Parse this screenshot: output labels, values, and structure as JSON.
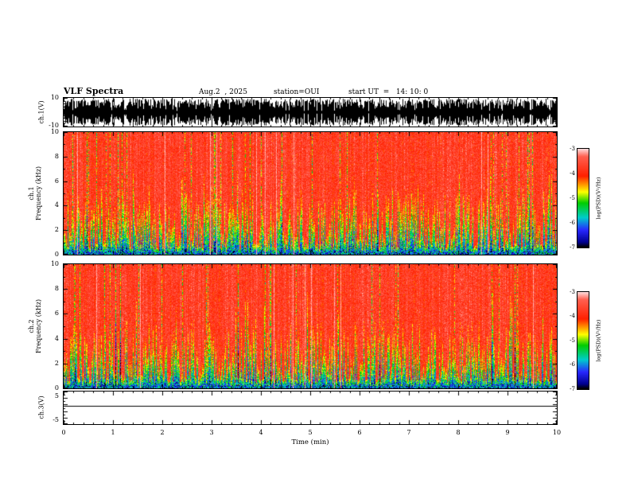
{
  "header": {
    "title": "VLF Spectra",
    "date": "Aug.2  , 2025",
    "station": "station=OUI",
    "start_ut": "start UT  =   14: 10: 0"
  },
  "xaxis": {
    "label": "Time  (min)",
    "ticks": [
      "0",
      "1",
      "2",
      "3",
      "4",
      "5",
      "6",
      "7",
      "8",
      "9",
      "10"
    ]
  },
  "panels": {
    "wave": {
      "ylabel": "ch.1(V)",
      "yticks": [
        "10",
        "-10"
      ]
    },
    "spec1": {
      "ylabel_ch": "ch.1",
      "ylabel_freq": "Frequency  (kHz)",
      "yticks": [
        "10",
        "8",
        "6",
        "4",
        "2",
        "0"
      ]
    },
    "spec2": {
      "ylabel_ch": "ch.2",
      "ylabel_freq": "Frequency  (kHz)",
      "yticks": [
        "10",
        "8",
        "6",
        "4",
        "2",
        "0"
      ]
    },
    "ch3": {
      "ylabel": "ch.3(V)",
      "yticks": [
        "5",
        "-5"
      ]
    }
  },
  "colorbar": {
    "label": "log(PSD)(V²/Hz)",
    "ticks": [
      "-3",
      "-4",
      "-5",
      "-6",
      "-7"
    ]
  },
  "colors": {
    "colormap_stops": [
      {
        "value": -3.0,
        "hex": "#ffd8d8"
      },
      {
        "value": -3.3,
        "hex": "#ff6050"
      },
      {
        "value": -4.1,
        "hex": "#ff2000"
      },
      {
        "value": -4.45,
        "hex": "#ff9800"
      },
      {
        "value": -4.75,
        "hex": "#ffff00"
      },
      {
        "value": -5.2,
        "hex": "#00cc00"
      },
      {
        "value": -5.8,
        "hex": "#00cccc"
      },
      {
        "value": -6.3,
        "hex": "#2828ff"
      },
      {
        "value": -6.8,
        "hex": "#000090"
      },
      {
        "value": -7.0,
        "hex": "#000000"
      }
    ]
  },
  "chart_data": [
    {
      "type": "line",
      "name": "ch.1(V) raw waveform",
      "xlim": [
        0,
        10
      ],
      "ylim": [
        -10,
        10
      ],
      "xlabel": "Time  (min)",
      "ylabel": "ch.1(V)",
      "description": "dense broadband noise filling roughly ±9 V continuously for the full 10 minutes"
    },
    {
      "type": "heatmap",
      "name": "ch.1 spectrogram",
      "xlim": [
        0,
        10
      ],
      "ylim": [
        0,
        10
      ],
      "xlabel": "Time  (min)",
      "ylabel": "ch.1 Frequency  (kHz)",
      "zlabel": "log(PSD)(V²/Hz)",
      "zlim": [
        -7,
        -3
      ],
      "description": "power ≈ -3.5 to -4 (red) over most of 2-10 kHz with dense vertical striations; 0-2 kHz mixed -4.5 to -7 (yellow/green/cyan/blue) with spiky bursts reaching up to ~5 kHz; occasional pale and dark full-height streaks; thin dark band at 0 kHz"
    },
    {
      "type": "heatmap",
      "name": "ch.2 spectrogram",
      "xlim": [
        0,
        10
      ],
      "ylim": [
        0,
        10
      ],
      "xlabel": "Time  (min)",
      "ylabel": "ch.2 Frequency  (kHz)",
      "zlabel": "log(PSD)(V²/Hz)",
      "zlim": [
        -7,
        -3
      ],
      "description": "same character as ch.1: mostly red (-3.5 to -4) with vertical striations, green/cyan/blue mixture below ~2 kHz and spiky bursts"
    },
    {
      "type": "line",
      "name": "ch.3(V)",
      "xlim": [
        0,
        10
      ],
      "ylim": [
        -5,
        5
      ],
      "constant_value": 0.5,
      "description": "flat horizontal line at ≈ +0.5 V"
    }
  ]
}
